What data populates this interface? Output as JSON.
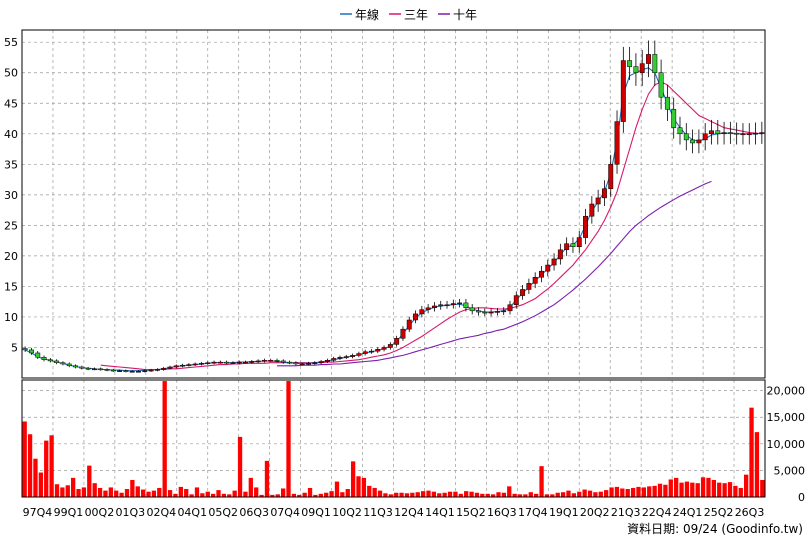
{
  "legend": {
    "items": [
      {
        "label": "年線",
        "color": "#1f6fbf"
      },
      {
        "label": "三年",
        "color": "#d6196b"
      },
      {
        "label": "十年",
        "color": "#7a1fb0"
      }
    ]
  },
  "footer": {
    "text": "資料日期: 09/24  (Goodinfo.tw)"
  },
  "chart_data": [
    {
      "type": "candlestick",
      "ylim": [
        0,
        57
      ],
      "yticks": [
        5,
        10,
        15,
        20,
        25,
        30,
        35,
        40,
        45,
        50,
        55
      ],
      "grid": true,
      "legend_placement": "top-center",
      "x_tick_labels": [
        "97Q4",
        "99Q1",
        "00Q2",
        "01Q3",
        "02Q4",
        "04Q1",
        "05Q2",
        "06Q3",
        "07Q4",
        "09Q1",
        "10Q2",
        "11Q3",
        "12Q4",
        "14Q1",
        "15Q2",
        "16Q3",
        "17Q4",
        "19Q1",
        "20Q2",
        "21Q3",
        "22Q4",
        "24Q1",
        "25Q2",
        "26Q3"
      ],
      "quarters": 118,
      "close": [
        4.6,
        4.1,
        3.4,
        3.0,
        2.8,
        2.5,
        2.3,
        2.0,
        1.8,
        1.6,
        1.5,
        1.5,
        1.4,
        1.3,
        1.2,
        1.2,
        1.1,
        1.1,
        1.1,
        1.2,
        1.3,
        1.4,
        1.6,
        1.8,
        2.0,
        2.1,
        2.2,
        2.3,
        2.4,
        2.5,
        2.6,
        2.6,
        2.5,
        2.5,
        2.6,
        2.6,
        2.7,
        2.8,
        2.9,
        2.9,
        2.8,
        2.6,
        2.5,
        2.3,
        2.3,
        2.4,
        2.5,
        2.7,
        2.9,
        3.2,
        3.4,
        3.5,
        3.7,
        4.0,
        4.3,
        4.4,
        4.7,
        5.0,
        5.5,
        6.5,
        8.0,
        9.5,
        10.5,
        11.2,
        11.5,
        11.8,
        12.0,
        12.0,
        12.2,
        12.3,
        11.5,
        11.0,
        10.8,
        10.7,
        10.8,
        10.9,
        11.0,
        12.0,
        13.5,
        14.5,
        15.5,
        16.5,
        17.5,
        18.5,
        19.5,
        21.0,
        22.0,
        21.5,
        23.0,
        26.5,
        28.5,
        29.5,
        31.0,
        35.0,
        42.0,
        52.0,
        51.0,
        50.0,
        51.5,
        53.0,
        50.0,
        46.0,
        44.0,
        41.0,
        40.0,
        39.0,
        38.5,
        39.0,
        40.0,
        40.5,
        40.0,
        40.2,
        40.1,
        40.0,
        40.0,
        40.0,
        40.1,
        40.2
      ],
      "annual_ma": [
        4.6,
        4.1,
        3.5,
        3.1,
        2.9,
        2.6,
        2.4,
        2.1,
        1.9,
        1.7,
        1.6,
        1.5,
        1.4,
        1.4,
        1.3,
        1.3,
        1.2,
        1.2,
        1.2,
        1.3,
        1.3,
        1.4,
        1.5,
        1.7,
        1.9,
        2.0,
        2.1,
        2.2,
        2.3,
        2.4,
        2.5,
        2.5,
        2.5,
        2.5,
        2.6,
        2.6,
        2.7,
        2.7,
        2.8,
        2.8,
        2.7,
        2.6,
        2.5,
        2.4,
        2.4,
        2.4,
        2.5,
        2.6,
        2.8,
        3.0,
        3.2,
        3.4,
        3.6,
        3.8,
        4.1,
        4.3,
        4.5,
        4.8,
        5.2,
        6.0,
        7.2,
        8.6,
        9.8,
        10.7,
        11.2,
        11.6,
        11.8,
        11.9,
        12.0,
        12.1,
        11.8,
        11.3,
        11.0,
        10.8,
        10.8,
        10.9,
        11.0,
        11.6,
        12.8,
        13.9,
        14.9,
        15.9,
        16.9,
        17.9,
        18.9,
        20.2,
        21.4,
        21.8,
        22.8,
        25.0,
        27.3,
        28.9,
        30.5,
        33.5,
        38.8,
        46.5,
        49.5,
        50.0,
        50.5,
        50.8,
        50.0,
        47.5,
        45.0,
        42.5,
        41.0,
        39.8,
        39.0,
        38.8,
        39.2,
        39.8,
        40.0,
        40.1,
        40.1,
        40.0,
        40.0,
        40.0,
        40.0,
        40.1
      ],
      "three_year_ma": [
        null,
        null,
        null,
        null,
        null,
        null,
        null,
        null,
        null,
        null,
        null,
        null,
        2.1,
        2.0,
        1.9,
        1.8,
        1.7,
        1.6,
        1.5,
        1.4,
        1.4,
        1.4,
        1.4,
        1.5,
        1.5,
        1.6,
        1.7,
        1.8,
        1.9,
        2.0,
        2.1,
        2.2,
        2.2,
        2.3,
        2.3,
        2.4,
        2.4,
        2.4,
        2.4,
        2.5,
        2.5,
        2.5,
        2.5,
        2.5,
        2.5,
        2.5,
        2.5,
        2.5,
        2.6,
        2.6,
        2.7,
        2.8,
        2.9,
        3.0,
        3.2,
        3.4,
        3.6,
        3.8,
        4.1,
        4.5,
        5.0,
        5.6,
        6.2,
        6.8,
        7.5,
        8.2,
        8.9,
        9.6,
        10.2,
        10.8,
        11.2,
        11.4,
        11.5,
        11.5,
        11.4,
        11.3,
        11.3,
        11.4,
        11.7,
        12.0,
        12.5,
        13.0,
        13.8,
        14.6,
        15.5,
        16.5,
        17.5,
        18.5,
        19.8,
        21.0,
        22.5,
        24.0,
        25.8,
        28.0,
        30.5,
        34.0,
        37.5,
        41.0,
        44.0,
        46.5,
        48.0,
        48.5,
        48.0,
        47.0,
        46.0,
        45.0,
        44.0,
        43.0,
        42.5,
        42.0,
        41.5,
        41.0,
        40.8,
        40.6,
        40.4,
        40.2,
        40.1,
        40.0
      ],
      "ten_year_ma": [
        null,
        null,
        null,
        null,
        null,
        null,
        null,
        null,
        null,
        null,
        null,
        null,
        null,
        null,
        null,
        null,
        null,
        null,
        null,
        null,
        null,
        null,
        null,
        null,
        null,
        null,
        null,
        null,
        null,
        null,
        null,
        null,
        null,
        null,
        null,
        null,
        null,
        null,
        null,
        null,
        2.0,
        2.0,
        2.0,
        2.0,
        2.1,
        2.1,
        2.1,
        2.2,
        2.2,
        2.3,
        2.3,
        2.4,
        2.5,
        2.6,
        2.7,
        2.8,
        2.9,
        3.1,
        3.3,
        3.5,
        3.7,
        4.0,
        4.3,
        4.6,
        4.9,
        5.2,
        5.5,
        5.8,
        6.1,
        6.4,
        6.6,
        6.8,
        7.0,
        7.3,
        7.5,
        7.8,
        8.0,
        8.4,
        8.8,
        9.2,
        9.7,
        10.2,
        10.8,
        11.4,
        12.0,
        12.8,
        13.6,
        14.4,
        15.3,
        16.2,
        17.2,
        18.2,
        19.3,
        20.4,
        21.6,
        22.8,
        24.0,
        25.0,
        25.8,
        26.6,
        27.3,
        28.0,
        28.6,
        29.2,
        29.8,
        30.3,
        30.8,
        31.3,
        31.8,
        32.2,
        null,
        null,
        null,
        null,
        null,
        null,
        null,
        null
      ],
      "ten_year_ma_note": "",
      "up_color": "#cc0000",
      "down_color": "#33cc33"
    },
    {
      "type": "bar",
      "ylim": [
        0,
        22000
      ],
      "yticks": [
        0,
        5000,
        10000,
        15000,
        20000
      ],
      "ytick_labels": [
        "0",
        "5,000",
        "10,000",
        "15,000",
        "20,000"
      ],
      "color": "#ff0000",
      "values": [
        14200,
        11800,
        7200,
        4600,
        10600,
        11600,
        2400,
        1800,
        2200,
        3600,
        1500,
        1800,
        5900,
        2600,
        1700,
        1200,
        1800,
        1200,
        800,
        1500,
        3200,
        2000,
        1400,
        1000,
        1200,
        1700,
        21800,
        1300,
        600,
        1900,
        1500,
        500,
        1800,
        700,
        1000,
        600,
        1300,
        600,
        500,
        1200,
        11300,
        1000,
        3600,
        1800,
        400,
        6800,
        400,
        500,
        1600,
        21800,
        600,
        400,
        800,
        1700,
        400,
        600,
        800,
        1100,
        2900,
        900,
        1500,
        6700,
        3900,
        3600,
        2100,
        1700,
        1200,
        700,
        500,
        800,
        800,
        700,
        800,
        900,
        1100,
        1200,
        1000,
        700,
        800,
        1000,
        1000,
        600,
        1100,
        1000,
        800,
        600,
        600,
        500,
        900,
        800,
        2000,
        600,
        500,
        500,
        900,
        600,
        5800,
        500,
        500,
        800,
        900,
        1200,
        700,
        1000,
        1400,
        1200,
        900,
        1000,
        1300,
        1800,
        1900,
        1600,
        1500,
        1700,
        1900,
        1800,
        2000,
        2100,
        2500,
        2300,
        3300,
        3600,
        2700,
        2900,
        2700,
        2600,
        3700,
        3600,
        3200,
        2700,
        2600,
        2800,
        2100,
        1700,
        4200,
        16800,
        12200,
        3200
      ]
    }
  ]
}
